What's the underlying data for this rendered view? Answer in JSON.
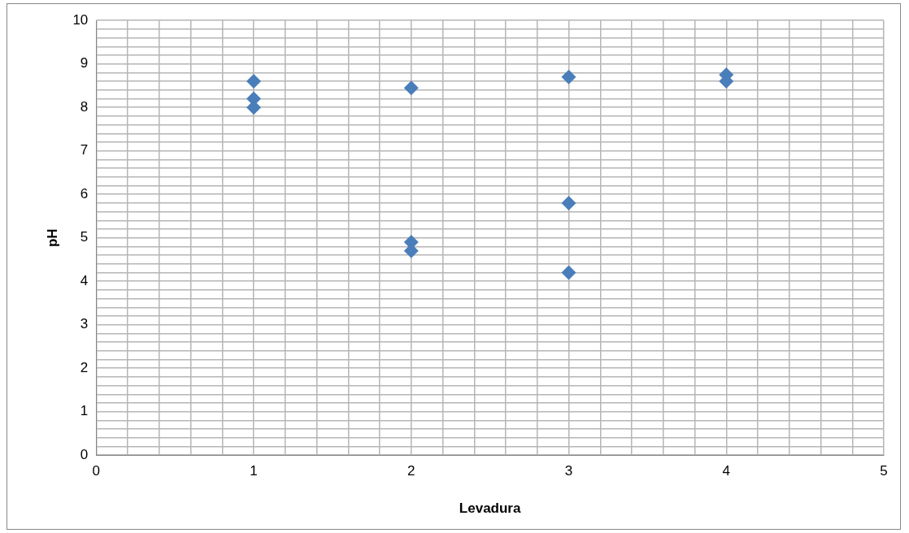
{
  "chart_data": {
    "type": "scatter",
    "xlabel": "Levadura",
    "ylabel": "pH",
    "marker": "diamond",
    "grid": true,
    "legend": false,
    "series": [
      {
        "color": "#4a7ebb",
        "x": [
          1,
          1,
          1,
          2,
          2,
          2,
          3,
          3,
          3,
          4,
          4
        ],
        "values": [
          8.6,
          8.2,
          8.0,
          8.45,
          4.9,
          4.7,
          8.7,
          5.8,
          4.2,
          8.75,
          8.6
        ]
      }
    ],
    "xlim": [
      0,
      5
    ],
    "ylim": [
      0,
      10
    ],
    "xticks": [
      0,
      {
        "value": 0.2,
        "label": null
      },
      {
        "value": 0.4,
        "label": null
      },
      {
        "value": 0.6,
        "label": null
      },
      {
        "value": 0.8,
        "label": null
      },
      1,
      {
        "value": 1.2,
        "label": null
      },
      {
        "value": 1.4,
        "label": null
      },
      {
        "value": 1.6,
        "label": null
      },
      {
        "value": 1.8,
        "label": null
      },
      2,
      {
        "value": 2.2,
        "label": null
      },
      {
        "value": 2.4,
        "label": null
      },
      {
        "value": 2.6,
        "label": null
      },
      {
        "value": 2.8,
        "label": null
      },
      3,
      {
        "value": 3.2,
        "label": null
      },
      {
        "value": 3.4,
        "label": null
      },
      {
        "value": 3.6,
        "label": null
      },
      {
        "value": 3.8,
        "label": null
      },
      4,
      {
        "value": 4.2,
        "label": null
      },
      {
        "value": 4.4,
        "label": null
      },
      {
        "value": 4.6,
        "label": null
      },
      {
        "value": 4.8,
        "label": null
      },
      5
    ],
    "yticks": [
      0,
      {
        "value": 0.2,
        "label": null
      },
      {
        "value": 0.4,
        "label": null
      },
      {
        "value": 0.6,
        "label": null
      },
      {
        "value": 0.8,
        "label": null
      },
      1,
      {
        "value": 1.2,
        "label": null
      },
      {
        "value": 1.4,
        "label": null
      },
      {
        "value": 1.6,
        "label": null
      },
      {
        "value": 1.8,
        "label": null
      },
      2,
      {
        "value": 2.2,
        "label": null
      },
      {
        "value": 2.4,
        "label": null
      },
      {
        "value": 2.6,
        "label": null
      },
      {
        "value": 2.8,
        "label": null
      },
      3,
      {
        "value": 3.2,
        "label": null
      },
      {
        "value": 3.4,
        "label": null
      },
      {
        "value": 3.6,
        "label": null
      },
      {
        "value": 3.8,
        "label": null
      },
      4,
      {
        "value": 4.2,
        "label": null
      },
      {
        "value": 4.4,
        "label": null
      },
      {
        "value": 4.6,
        "label": null
      },
      {
        "value": 4.8,
        "label": null
      },
      5,
      {
        "value": 5.2,
        "label": null
      },
      {
        "value": 5.4,
        "label": null
      },
      {
        "value": 5.6,
        "label": null
      },
      {
        "value": 5.8,
        "label": null
      },
      6,
      {
        "value": 6.2,
        "label": null
      },
      {
        "value": 6.4,
        "label": null
      },
      {
        "value": 6.6,
        "label": null
      },
      {
        "value": 6.8,
        "label": null
      },
      7,
      {
        "value": 7.2,
        "label": null
      },
      {
        "value": 7.4,
        "label": null
      },
      {
        "value": 7.6,
        "label": null
      },
      {
        "value": 7.8,
        "label": null
      },
      8,
      {
        "value": 8.2,
        "label": null
      },
      {
        "value": 8.4,
        "label": null
      },
      {
        "value": 8.6,
        "label": null
      },
      {
        "value": 8.8,
        "label": null
      },
      9,
      {
        "value": 9.2,
        "label": null
      },
      {
        "value": 9.4,
        "label": null
      },
      {
        "value": 9.6,
        "label": null
      },
      {
        "value": 9.8,
        "label": null
      },
      10
    ]
  }
}
